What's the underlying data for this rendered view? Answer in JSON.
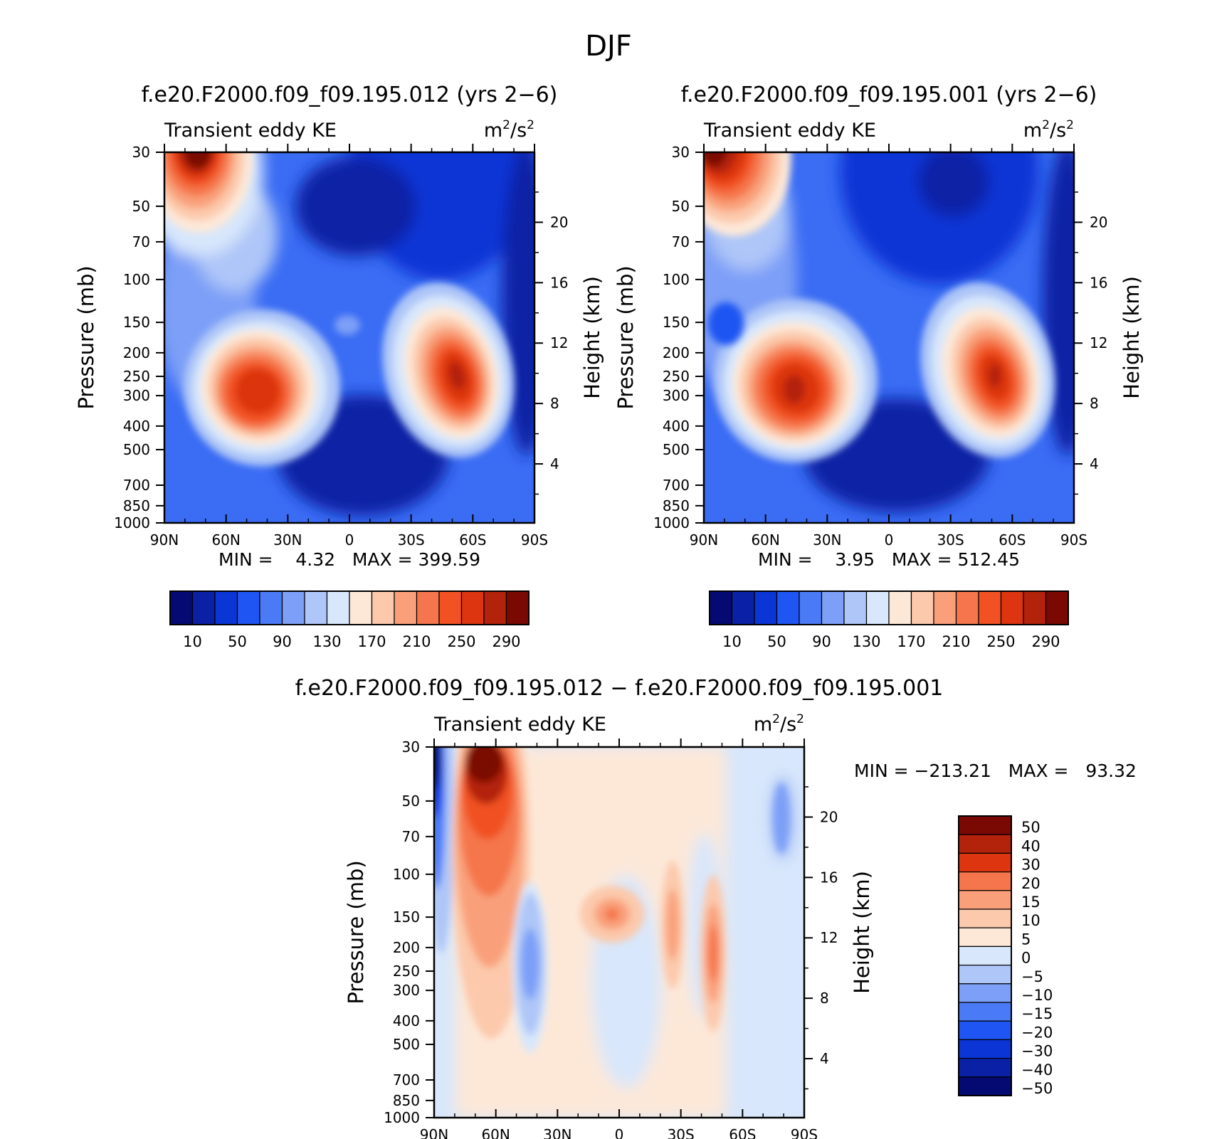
{
  "figure": {
    "title": "DJF"
  },
  "panels": [
    {
      "id": "case1",
      "title": "f.e20.F2000.f09_f09.195.012 (yrs 2−6)",
      "left_label": "Transient eddy KE",
      "units": "m²/s²",
      "stats": {
        "min_label": "MIN =",
        "min": "4.32",
        "max_label": "MAX =",
        "max": "399.59"
      }
    },
    {
      "id": "case2",
      "title": "f.e20.F2000.f09_f09.195.001 (yrs 2−6)",
      "left_label": "Transient eddy KE",
      "units": "m²/s²",
      "stats": {
        "min_label": "MIN =",
        "min": "3.95",
        "max_label": "MAX =",
        "max": "512.45"
      }
    },
    {
      "id": "diff",
      "title": "f.e20.F2000.f09_f09.195.012 − f.e20.F2000.f09_f09.195.001",
      "left_label": "Transient eddy KE",
      "units": "m²/s²",
      "stats": {
        "min_label": "MIN =",
        "min": "−213.21",
        "max_label": "MAX =",
        "max": "93.32"
      }
    }
  ],
  "axes": {
    "ylabel": "Pressure (mb)",
    "y2label": "Height (km)",
    "x_ticks": [
      "90N",
      "60N",
      "30N",
      "0",
      "30S",
      "60S",
      "90S"
    ],
    "x_tick_values": [
      90,
      60,
      30,
      0,
      -30,
      -60,
      -90
    ],
    "y_ticks": [
      30,
      50,
      70,
      100,
      150,
      200,
      250,
      300,
      400,
      500,
      700,
      850,
      1000
    ],
    "y2_ticks": [
      20,
      16,
      12,
      8,
      4
    ]
  },
  "colorbars": {
    "abs": {
      "labels": [
        "10",
        "50",
        "90",
        "130",
        "170",
        "210",
        "250",
        "290"
      ],
      "colors": [
        "#050a73",
        "#0a21a5",
        "#0c35d6",
        "#1f55f2",
        "#4a7af5",
        "#7d9ff7",
        "#aec6f8",
        "#d8e7fb",
        "#fde8d8",
        "#fcc9ac",
        "#f9a07a",
        "#f5764c",
        "#f15123",
        "#dc3510",
        "#b3220b",
        "#7a0904"
      ]
    },
    "diff": {
      "labels": [
        "50",
        "40",
        "30",
        "20",
        "15",
        "10",
        "5",
        "0",
        "−5",
        "−10",
        "−15",
        "−20",
        "−30",
        "−40",
        "−50"
      ],
      "colors": [
        "#7a0904",
        "#b3220b",
        "#dc3510",
        "#f5764c",
        "#f9a07a",
        "#fcc9ac",
        "#fde8d8",
        "#d8e7fb",
        "#aec6f8",
        "#7d9ff7",
        "#4a7af5",
        "#1f55f2",
        "#0c35d6",
        "#0a21a5",
        "#050a73"
      ]
    }
  },
  "chart_data": [
    {
      "type": "heatmap",
      "title": "f.e20.F2000.f09_f09.195.012 (yrs 2−6)",
      "xlabel": "",
      "ylabel": "Pressure (mb)",
      "y2label": "Height (km)",
      "xlim": [
        90,
        -90
      ],
      "ylim": [
        1000,
        30
      ],
      "yscale": "log",
      "value_range": [
        4.32,
        399.59
      ],
      "features": [
        {
          "name": "stratospheric polar jet max",
          "lat": 75,
          "p": 35,
          "value": 300
        },
        {
          "name": "NH subtropical storm-track max",
          "lat": 45,
          "p": 290,
          "value": 280
        },
        {
          "name": "SH storm-track max",
          "lat": -52,
          "p": 270,
          "value": 290
        }
      ]
    },
    {
      "type": "heatmap",
      "title": "f.e20.F2000.f09_f09.195.001 (yrs 2−6)",
      "xlabel": "",
      "ylabel": "Pressure (mb)",
      "y2label": "Height (km)",
      "xlim": [
        90,
        -90
      ],
      "ylim": [
        1000,
        30
      ],
      "yscale": "log",
      "value_range": [
        3.95,
        512.45
      ],
      "features": [
        {
          "name": "stratospheric polar jet max",
          "lat": 82,
          "p": 35,
          "value": 300
        },
        {
          "name": "NH storm-track max",
          "lat": 45,
          "p": 280,
          "value": 290
        },
        {
          "name": "SH storm-track max",
          "lat": -52,
          "p": 265,
          "value": 300
        }
      ]
    },
    {
      "type": "heatmap",
      "title": "f.e20.F2000.f09_f09.195.012 − f.e20.F2000.f09_f09.195.001",
      "xlabel": "",
      "ylabel": "Pressure (mb)",
      "y2label": "Height (km)",
      "xlim": [
        90,
        -90
      ],
      "ylim": [
        1000,
        30
      ],
      "yscale": "log",
      "value_range": [
        -213.21,
        93.32
      ],
      "features": [
        {
          "name": "polar minimum",
          "lat": 88,
          "p": 60,
          "value": -50
        },
        {
          "name": "positive column",
          "lat": 68,
          "p": 50,
          "value": 50
        },
        {
          "name": "negative blob",
          "lat": 46,
          "p": 200,
          "value": -15
        },
        {
          "name": "positive blob",
          "lat": 3,
          "p": 150,
          "value": 15
        },
        {
          "name": "positive ridge",
          "lat": -28,
          "p": 170,
          "value": 15
        },
        {
          "name": "positive ridge",
          "lat": -47,
          "p": 220,
          "value": 20
        }
      ]
    }
  ]
}
